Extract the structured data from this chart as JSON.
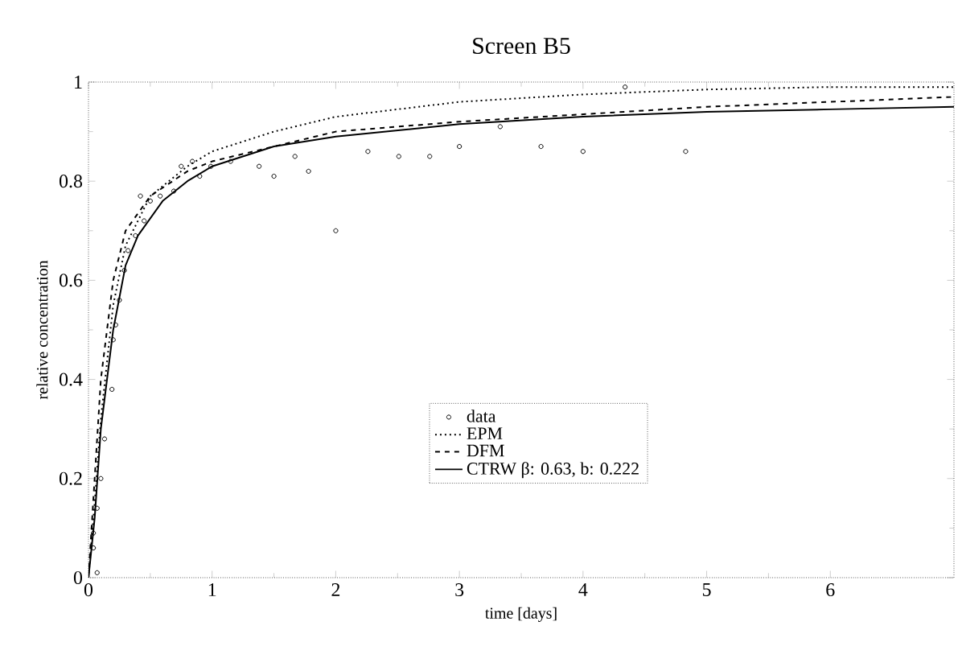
{
  "chart_data": {
    "type": "line",
    "title": "Screen B5",
    "xlabel": "time [days]",
    "ylabel": "relative concentration",
    "xlim": [
      0,
      7
    ],
    "ylim": [
      0,
      1
    ],
    "xticks": [
      0,
      1,
      2,
      3,
      4,
      5,
      6
    ],
    "yticks": [
      0,
      0.2,
      0.4,
      0.6,
      0.8,
      1
    ],
    "legend": "bottom",
    "grid": false,
    "series": [
      {
        "name": "data",
        "type": "scatter",
        "marker": "circle",
        "color": "#000000",
        "x": [
          0.04,
          0.04,
          0.07,
          0.07,
          0.1,
          0.13,
          0.19,
          0.2,
          0.22,
          0.25,
          0.29,
          0.32,
          0.38,
          0.42,
          0.45,
          0.5,
          0.58,
          0.69,
          0.75,
          0.84,
          0.9,
          0.99,
          1.15,
          1.38,
          1.5,
          1.67,
          1.78,
          2.0,
          2.26,
          2.51,
          2.76,
          3.0,
          3.33,
          3.66,
          4.0,
          4.34,
          4.83
        ],
        "values": [
          0.06,
          0.09,
          0.01,
          0.14,
          0.2,
          0.28,
          0.38,
          0.48,
          0.51,
          0.56,
          0.62,
          0.66,
          0.69,
          0.77,
          0.72,
          0.76,
          0.77,
          0.78,
          0.83,
          0.84,
          0.81,
          0.83,
          0.84,
          0.83,
          0.81,
          0.85,
          0.82,
          0.7,
          0.86,
          0.85,
          0.85,
          0.87,
          0.91,
          0.87,
          0.86,
          0.99,
          0.86
        ]
      },
      {
        "name": "EPM",
        "line_style": "dotted",
        "color": "#000000",
        "x": [
          0,
          0.05,
          0.1,
          0.2,
          0.3,
          0.5,
          0.8,
          1,
          1.5,
          2,
          3,
          4,
          5,
          6,
          7
        ],
        "values": [
          0,
          0.15,
          0.32,
          0.55,
          0.67,
          0.77,
          0.83,
          0.86,
          0.9,
          0.93,
          0.96,
          0.975,
          0.985,
          0.99,
          0.99
        ]
      },
      {
        "name": "DFM",
        "line_style": "dashed",
        "color": "#000000",
        "x": [
          0,
          0.05,
          0.1,
          0.2,
          0.3,
          0.5,
          0.8,
          1,
          2,
          3,
          4,
          5,
          6,
          7
        ],
        "values": [
          0,
          0.2,
          0.4,
          0.6,
          0.7,
          0.77,
          0.82,
          0.84,
          0.9,
          0.92,
          0.935,
          0.95,
          0.96,
          0.97
        ]
      },
      {
        "name": "CTRW β: 0.63, b: 0.222",
        "line_style": "solid",
        "color": "#000000",
        "x": [
          0,
          0.05,
          0.1,
          0.2,
          0.3,
          0.4,
          0.6,
          0.8,
          1,
          1.5,
          2,
          3,
          4,
          5,
          6,
          7
        ],
        "values": [
          0,
          0.12,
          0.3,
          0.5,
          0.63,
          0.69,
          0.76,
          0.8,
          0.83,
          0.87,
          0.89,
          0.915,
          0.93,
          0.94,
          0.945,
          0.95
        ]
      }
    ]
  }
}
